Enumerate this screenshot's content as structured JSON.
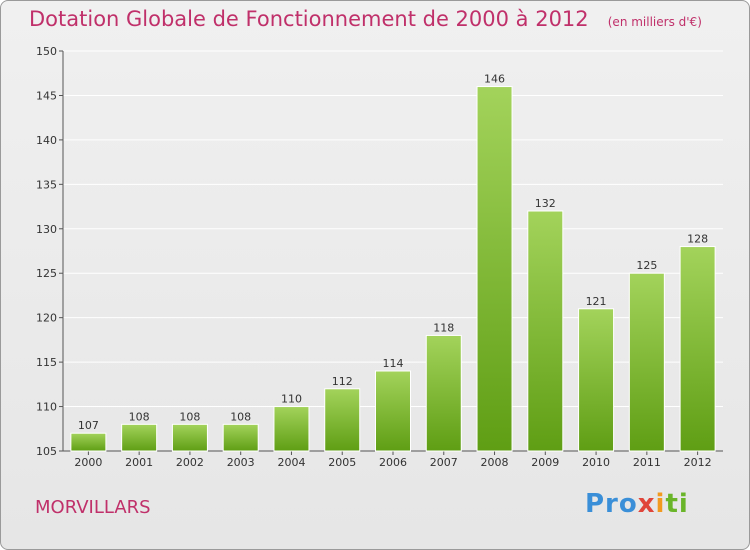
{
  "title": "Dotation Globale de Fonctionnement de 2000 à 2012",
  "subtitle": "(en milliers d'€)",
  "place": "MORVILLARS",
  "logo": {
    "parts": [
      "Pro",
      "x",
      "i",
      "ti"
    ]
  },
  "colors": {
    "title": "#c0306a",
    "bar_light": "#a3d35b",
    "bar_dark": "#5f9e14",
    "grid": "#ffffff"
  },
  "chart_data": {
    "type": "bar",
    "title": "Dotation Globale de Fonctionnement de 2000 à 2012",
    "subtitle": "(en milliers d'€)",
    "categories": [
      "2000",
      "2001",
      "2002",
      "2003",
      "2004",
      "2005",
      "2006",
      "2007",
      "2008",
      "2009",
      "2010",
      "2011",
      "2012"
    ],
    "values": [
      107,
      108,
      108,
      108,
      110,
      112,
      114,
      118,
      146,
      132,
      121,
      125,
      128
    ],
    "xlabel": "",
    "ylabel": "",
    "ylim": [
      105,
      150
    ],
    "yticks": [
      105,
      110,
      115,
      120,
      125,
      130,
      135,
      140,
      145,
      150
    ],
    "grid": true
  }
}
